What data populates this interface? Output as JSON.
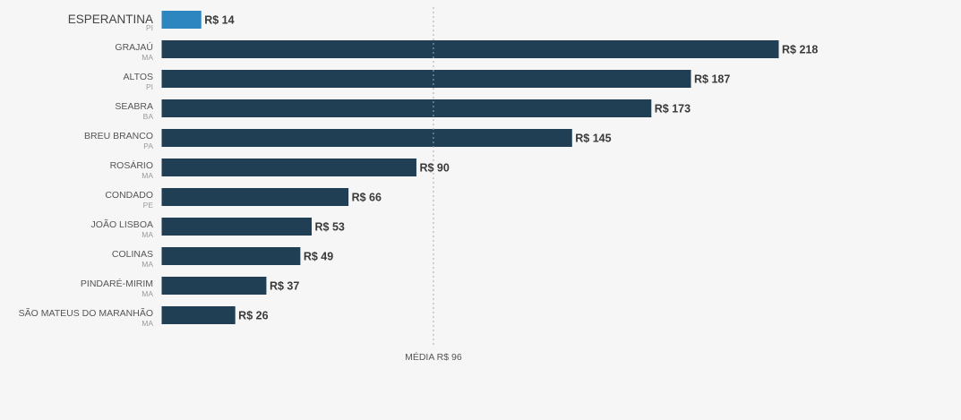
{
  "chart_data": {
    "type": "bar",
    "orientation": "horizontal",
    "categories": [
      {
        "name": "ESPERANTINA",
        "state": "PI"
      },
      {
        "name": "GRAJAÚ",
        "state": "MA"
      },
      {
        "name": "ALTOS",
        "state": "PI"
      },
      {
        "name": "SEABRA",
        "state": "BA"
      },
      {
        "name": "BREU BRANCO",
        "state": "PA"
      },
      {
        "name": "ROSÁRIO",
        "state": "MA"
      },
      {
        "name": "CONDADO",
        "state": "PE"
      },
      {
        "name": "JOÃO LISBOA",
        "state": "MA"
      },
      {
        "name": "COLINAS",
        "state": "MA"
      },
      {
        "name": "PINDARÉ-MIRIM",
        "state": "MA"
      },
      {
        "name": "SÃO MATEUS DO MARANHÃO",
        "state": "MA"
      }
    ],
    "values": [
      14,
      218,
      187,
      173,
      145,
      90,
      66,
      53,
      49,
      37,
      26
    ],
    "value_labels": [
      "R$ 14",
      "R$ 218",
      "R$ 187",
      "R$ 173",
      "R$ 145",
      "R$ 90",
      "R$ 66",
      "R$ 53",
      "R$ 49",
      "R$ 37",
      "R$ 26"
    ],
    "highlighted_category": "ESPERANTINA",
    "reference_line": {
      "value": 96,
      "label": "MÉDIA R$ 96"
    },
    "xlim": [
      0,
      218
    ],
    "grid": false,
    "colors": {
      "bar": "#203f55",
      "highlight": "#2e86c1",
      "background": "#f6f6f6"
    }
  }
}
